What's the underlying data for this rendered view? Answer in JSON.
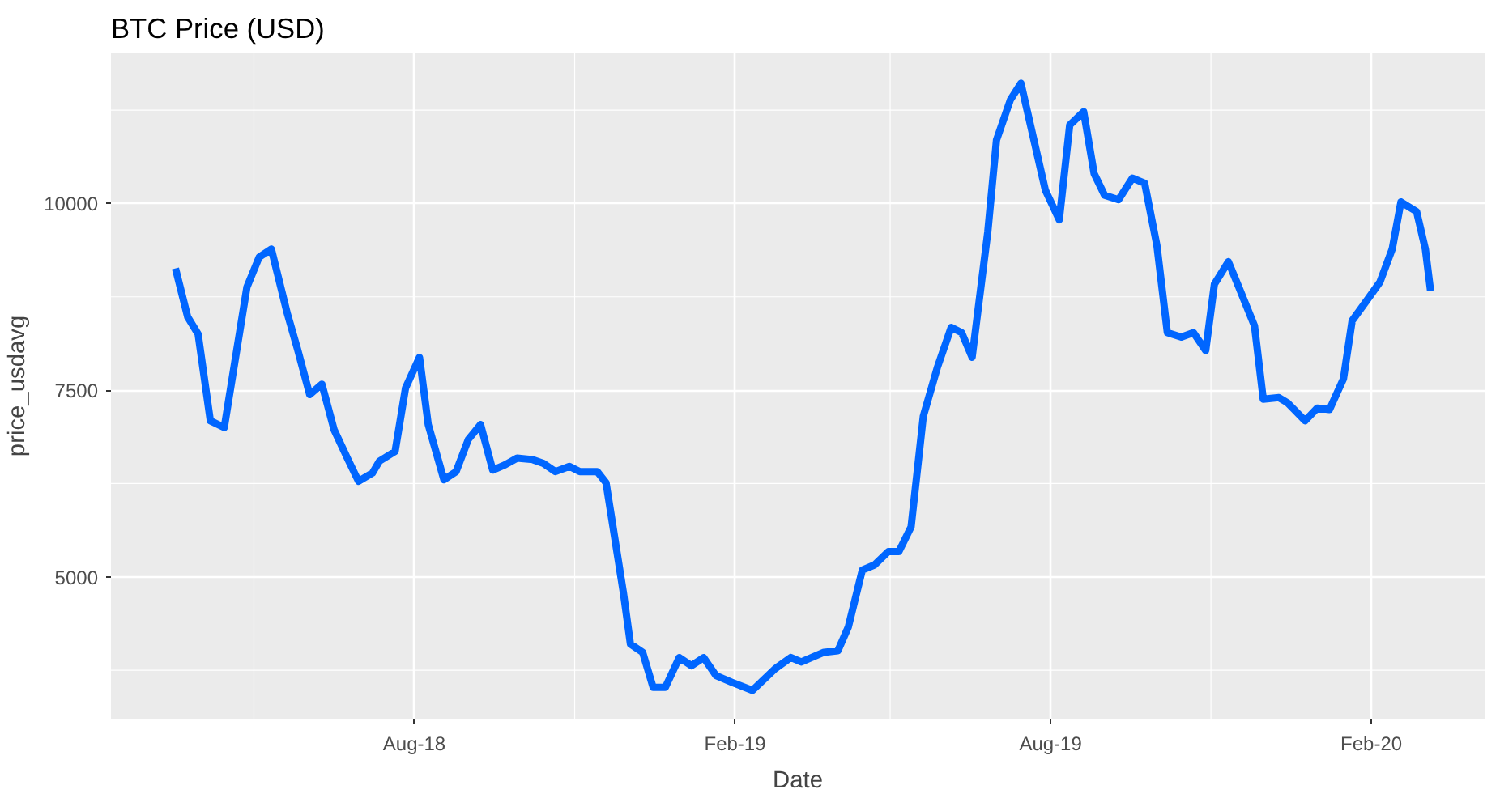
{
  "chart_data": {
    "type": "line",
    "title": "BTC Price (USD)",
    "xlabel": "Date",
    "ylabel": "price_usdavg",
    "x": [
      "2018-03-17",
      "2018-03-24",
      "2018-03-30",
      "2018-04-06",
      "2018-04-14",
      "2018-04-20",
      "2018-04-27",
      "2018-05-04",
      "2018-05-11",
      "2018-05-20",
      "2018-05-26",
      "2018-06-02",
      "2018-06-09",
      "2018-06-16",
      "2018-06-24",
      "2018-06-30",
      "2018-07-08",
      "2018-07-12",
      "2018-07-21",
      "2018-07-27",
      "2018-08-04",
      "2018-08-09",
      "2018-08-18",
      "2018-08-25",
      "2018-09-01",
      "2018-09-08",
      "2018-09-15",
      "2018-09-22",
      "2018-09-29",
      "2018-10-08",
      "2018-10-14",
      "2018-10-21",
      "2018-10-29",
      "2018-11-04",
      "2018-11-14",
      "2018-11-19",
      "2018-11-23",
      "2018-11-29",
      "2018-12-03",
      "2018-12-10",
      "2018-12-16",
      "2018-12-23",
      "2018-12-31",
      "2019-01-07",
      "2019-01-14",
      "2019-01-21",
      "2019-01-30",
      "2019-02-11",
      "2019-02-24",
      "2019-03-05",
      "2019-03-11",
      "2019-03-24",
      "2019-04-01",
      "2019-04-07",
      "2019-04-15",
      "2019-04-22",
      "2019-04-30",
      "2019-05-06",
      "2019-05-13",
      "2019-05-20",
      "2019-05-28",
      "2019-06-05",
      "2019-06-11",
      "2019-06-17",
      "2019-06-26",
      "2019-07-01",
      "2019-07-09",
      "2019-07-15",
      "2019-07-29",
      "2019-08-06",
      "2019-08-12",
      "2019-08-20",
      "2019-08-26",
      "2019-09-01",
      "2019-09-09",
      "2019-09-17",
      "2019-09-24",
      "2019-10-01",
      "2019-10-07",
      "2019-10-15",
      "2019-10-22",
      "2019-10-29",
      "2019-11-03",
      "2019-11-11",
      "2019-11-17",
      "2019-11-26",
      "2019-12-01",
      "2019-12-10",
      "2019-12-15",
      "2019-12-25",
      "2020-01-01",
      "2020-01-08",
      "2020-01-16",
      "2020-01-21",
      "2020-01-30",
      "2020-02-06",
      "2020-02-13",
      "2020-02-18",
      "2020-02-27",
      "2020-03-03",
      "2020-03-06"
    ],
    "series": [
      {
        "color": "#0066ff",
        "values": [
          9130,
          8480,
          8250,
          7090,
          7000,
          7870,
          8880,
          9280,
          9390,
          8540,
          8050,
          7440,
          7580,
          6970,
          6570,
          6280,
          6390,
          6550,
          6680,
          7530,
          7940,
          7040,
          6300,
          6410,
          6840,
          7040,
          6430,
          6500,
          6590,
          6570,
          6520,
          6410,
          6480,
          6410,
          6410,
          6260,
          5670,
          4780,
          4100,
          3990,
          3520,
          3520,
          3920,
          3810,
          3920,
          3680,
          3590,
          3480,
          3770,
          3920,
          3860,
          3990,
          4010,
          4330,
          5090,
          5160,
          5340,
          5340,
          5670,
          7150,
          7800,
          8340,
          8270,
          7940,
          9620,
          10850,
          11390,
          11610,
          10180,
          9780,
          11050,
          11230,
          10400,
          10110,
          10050,
          10340,
          10270,
          9440,
          8270,
          8210,
          8270,
          8030,
          8920,
          9220,
          8880,
          8360,
          7380,
          7400,
          7330,
          7090,
          7260,
          7240,
          7650,
          8430,
          8720,
          8950,
          9390,
          10020,
          9890,
          9390,
          8830
        ]
      }
    ],
    "xlim": [
      "2018-02-08",
      "2020-04-06"
    ],
    "xticks": [
      {
        "value": "2018-05-01",
        "label": null
      },
      {
        "value": "2018-08-01",
        "label": "Aug-18"
      },
      {
        "value": "2018-11-01",
        "label": null
      },
      {
        "value": "2019-02-01",
        "label": "Feb-19"
      },
      {
        "value": "2019-05-01",
        "label": null
      },
      {
        "value": "2019-08-01",
        "label": "Aug-19"
      },
      {
        "value": "2019-11-01",
        "label": null
      },
      {
        "value": "2020-02-01",
        "label": "Feb-20"
      }
    ],
    "ylim": [
      3090,
      12020
    ],
    "yticks": [
      {
        "value": 3750,
        "label": null
      },
      5000,
      {
        "value": 6250,
        "label": null
      },
      7500,
      {
        "value": 8750,
        "label": null
      },
      10000,
      {
        "value": 11250,
        "label": null
      }
    ],
    "grid": true,
    "marker": "none",
    "line_style": "solid"
  }
}
